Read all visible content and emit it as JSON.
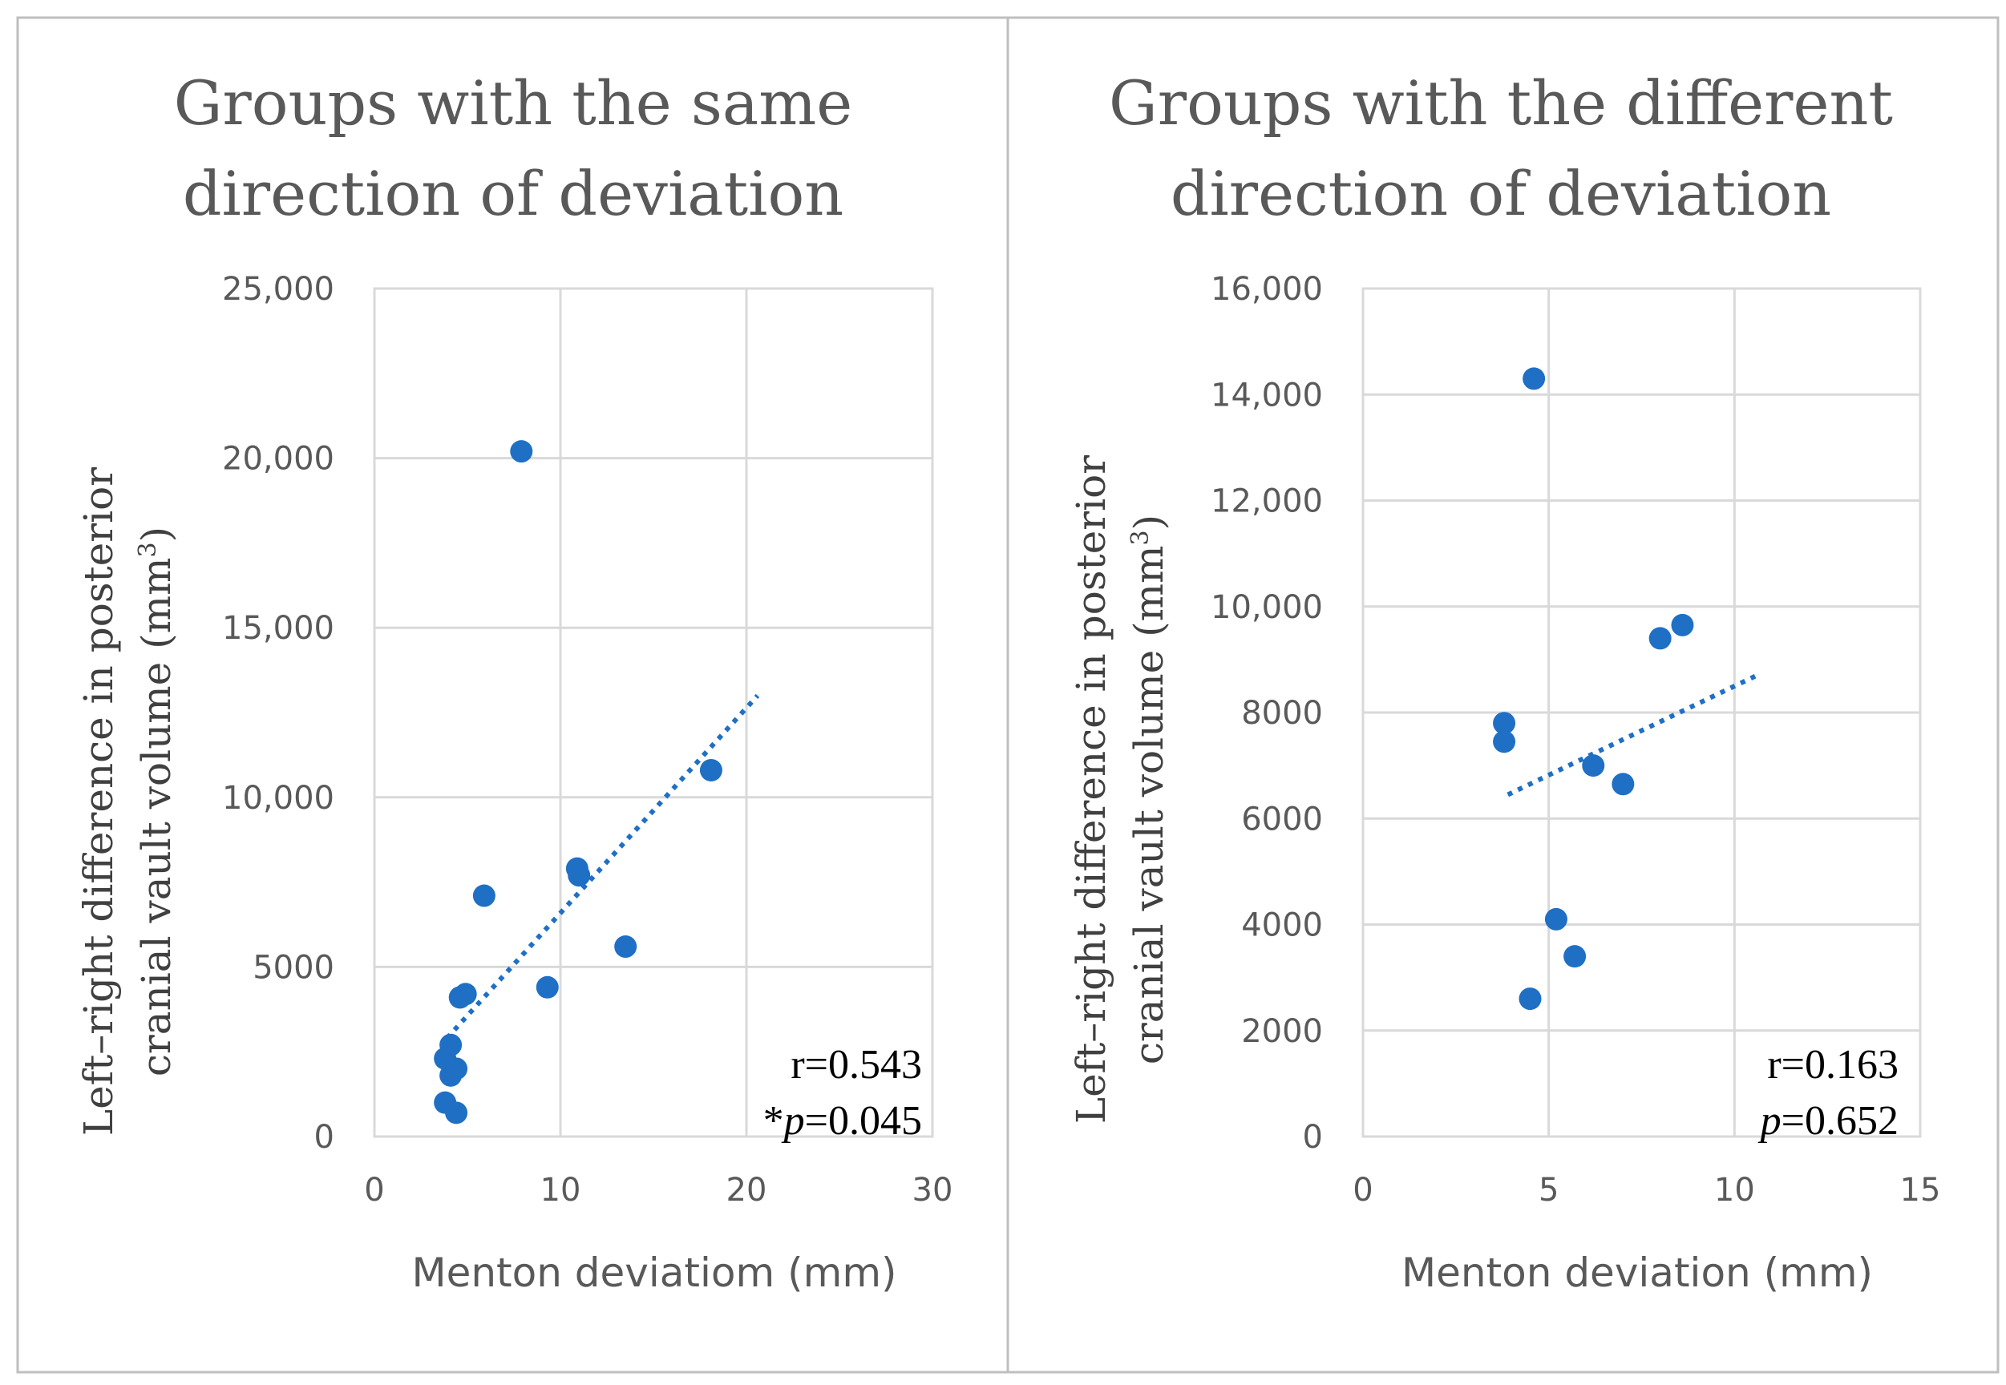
{
  "chart_data": [
    {
      "type": "scatter",
      "title_lines": [
        "Groups with the same",
        "direction of deviation"
      ],
      "xlabel": "Menton deviatiom (mm)",
      "ylabel_lines": [
        "Left–right difference in posterior",
        "cranial vault volume (mm",
        "3",
        ")"
      ],
      "xlim": [
        0,
        30
      ],
      "ylim": [
        0,
        25000
      ],
      "x_ticks": [
        0,
        10,
        20,
        30
      ],
      "x_tick_labels": [
        "0",
        "10",
        "20",
        "30"
      ],
      "y_ticks": [
        0,
        5000,
        10000,
        15000,
        20000,
        25000
      ],
      "y_tick_labels": [
        "0",
        "5000",
        "10,000",
        "15,000",
        "20,000",
        "25,000"
      ],
      "grid": true,
      "series": [
        {
          "points": [
            {
              "x": 7.9,
              "y": 20200
            },
            {
              "x": 18.1,
              "y": 10800
            },
            {
              "x": 10.9,
              "y": 7900
            },
            {
              "x": 11.0,
              "y": 7700
            },
            {
              "x": 5.9,
              "y": 7100
            },
            {
              "x": 13.5,
              "y": 5600
            },
            {
              "x": 9.3,
              "y": 4400
            },
            {
              "x": 4.9,
              "y": 4200
            },
            {
              "x": 4.6,
              "y": 4100
            },
            {
              "x": 4.1,
              "y": 2700
            },
            {
              "x": 3.8,
              "y": 2300
            },
            {
              "x": 4.4,
              "y": 2000
            },
            {
              "x": 4.1,
              "y": 1800
            },
            {
              "x": 3.8,
              "y": 1000
            },
            {
              "x": 4.4,
              "y": 700
            }
          ],
          "trendline": {
            "x": [
              3.9,
              20.6
            ],
            "y": [
              2900,
              13000
            ]
          }
        }
      ],
      "annotation_r": "r=0.543",
      "annotation_star": "*",
      "annotation_p_symbol": "p",
      "annotation_p_value": "=0.045",
      "color": "#1f6fc5"
    },
    {
      "type": "scatter",
      "title_lines": [
        "Groups with the different",
        "direction of deviation"
      ],
      "xlabel": "Menton deviation (mm)",
      "ylabel_lines": [
        "Left–right difference in posterior",
        "cranial vault volume (mm",
        "3",
        ")"
      ],
      "xlim": [
        0,
        15
      ],
      "ylim": [
        0,
        16000
      ],
      "x_ticks": [
        0,
        5,
        10,
        15
      ],
      "x_tick_labels": [
        "0",
        "5",
        "10",
        "15"
      ],
      "y_ticks": [
        0,
        2000,
        4000,
        6000,
        8000,
        10000,
        12000,
        14000,
        16000
      ],
      "y_tick_labels": [
        "0",
        "2000",
        "4000",
        "6000",
        "8000",
        "10,000",
        "12,000",
        "14,000",
        "16,000"
      ],
      "grid": true,
      "series": [
        {
          "points": [
            {
              "x": 4.6,
              "y": 14300
            },
            {
              "x": 8.6,
              "y": 9650
            },
            {
              "x": 8.0,
              "y": 9400
            },
            {
              "x": 3.8,
              "y": 7800
            },
            {
              "x": 3.8,
              "y": 7450
            },
            {
              "x": 6.2,
              "y": 7000
            },
            {
              "x": 7.0,
              "y": 6650
            },
            {
              "x": 5.2,
              "y": 4100
            },
            {
              "x": 5.7,
              "y": 3400
            },
            {
              "x": 4.5,
              "y": 2600
            }
          ],
          "trendline": {
            "x": [
              3.9,
              10.6
            ],
            "y": [
              6450,
              8700
            ]
          }
        }
      ],
      "annotation_r": "r=0.163",
      "annotation_star": "",
      "annotation_p_symbol": "p",
      "annotation_p_value": "=0.652",
      "color": "#1f6fc5"
    }
  ]
}
